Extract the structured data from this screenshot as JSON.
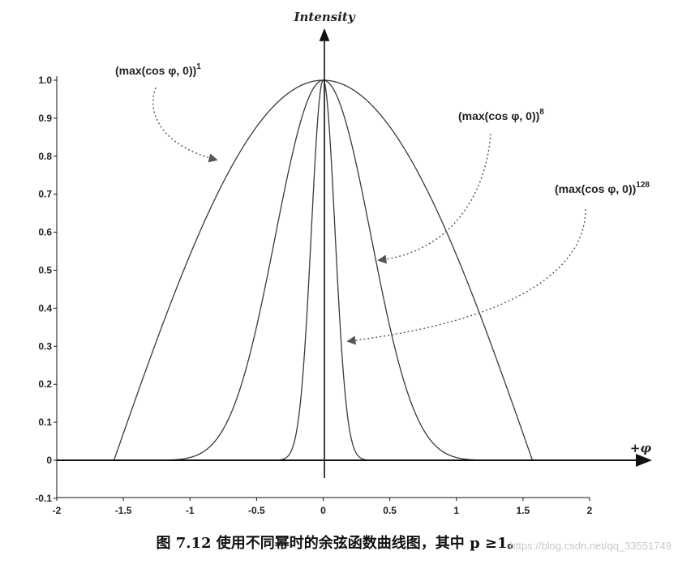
{
  "chart_data": {
    "type": "line",
    "ylabel": "Intensity",
    "xlabel": "+φ",
    "xlim": [
      -2,
      2
    ],
    "ylim": [
      -0.1,
      1.0
    ],
    "x_ticks": [
      "-2",
      "-1.5",
      "-1",
      "-0.5",
      "0",
      "0.5",
      "1",
      "1.5",
      "2"
    ],
    "y_ticks": [
      "1.0",
      "0.9",
      "0.8",
      "0.7",
      "0.6",
      "0.5",
      "0.4",
      "0.3",
      "0.2",
      "0.1",
      "0",
      "-0.1"
    ],
    "series": [
      {
        "name": "(max(cos φ, 0))",
        "exponent": 1,
        "superscript": "1"
      },
      {
        "name": "(max(cos φ, 0))",
        "exponent": 8,
        "superscript": "8"
      },
      {
        "name": "(max(cos φ, 0))",
        "exponent": 128,
        "superscript": "128"
      }
    ],
    "grid": false,
    "legend": "annotations with dotted arrows"
  },
  "caption": "图 7.12  使用不同幂时的余弦函数曲线图，其中 p ≥1。",
  "watermark": "https://blog.csdn.net/qq_33551749",
  "colors": {
    "curve": "#3a3a3a",
    "axis": "#111111",
    "arrow": "#555555"
  }
}
